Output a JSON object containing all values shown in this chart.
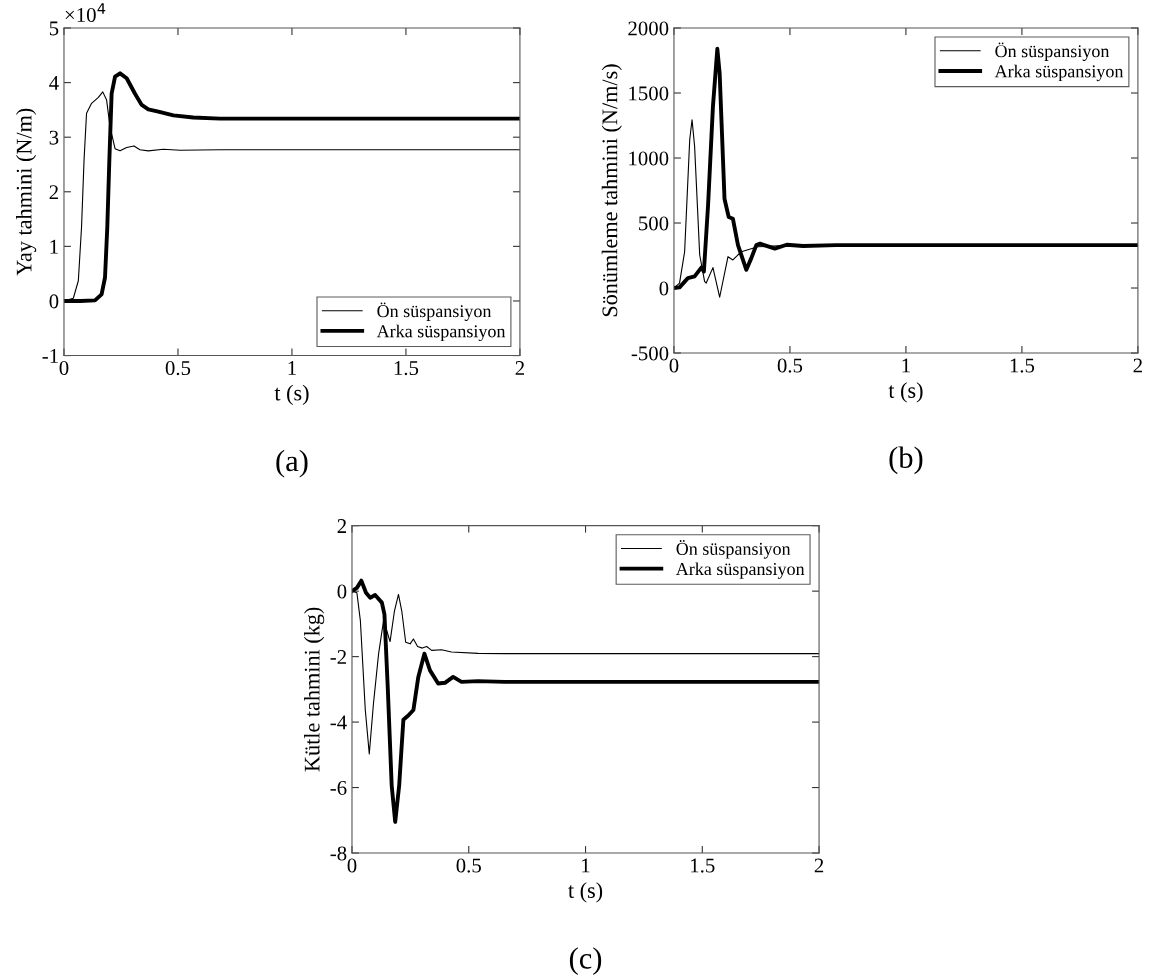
{
  "chart_data": [
    {
      "type": "line",
      "xlabel": "t (s)",
      "ylabel": "Yay tahmini (N/m)",
      "xlim": [
        0,
        2
      ],
      "xticks": [
        0,
        0.5,
        1,
        1.5,
        2
      ],
      "ylim": [
        -1,
        5
      ],
      "yticks": [
        -1,
        0,
        1,
        2,
        3,
        4,
        5
      ],
      "annotations": [
        "×10$^{4}$",
        "(a)"
      ],
      "legend": "bottom right",
      "grid": false,
      "marker": "none",
      "line_style": "solid",
      "series": [
        {
          "name": "Ön süspansiyon",
          "color": "#000000",
          "x": [
            0,
            0.041,
            0.063,
            0.077,
            0.088,
            0.099,
            0.121,
            0.151,
            0.17,
            0.187,
            0.202,
            0.224,
            0.246,
            0.275,
            0.307,
            0.333,
            0.37,
            0.436,
            0.509,
            0.684,
            1,
            2
          ],
          "values": [
            0,
            0.05,
            0.37,
            1.35,
            2.58,
            3.44,
            3.62,
            3.73,
            3.83,
            3.68,
            3.19,
            2.79,
            2.75,
            2.81,
            2.84,
            2.77,
            2.75,
            2.78,
            2.76,
            2.77,
            2.77,
            2.77
          ]
        },
        {
          "name": "Arka süspansiyon",
          "color": "#000000",
          "x": [
            0,
            0.07,
            0.136,
            0.165,
            0.18,
            0.19,
            0.199,
            0.209,
            0.224,
            0.246,
            0.275,
            0.311,
            0.341,
            0.37,
            0.414,
            0.48,
            0.567,
            0.684,
            1,
            2
          ],
          "values": [
            0,
            0,
            0.01,
            0.12,
            0.43,
            1.35,
            2.58,
            3.8,
            4.11,
            4.17,
            4.08,
            3.8,
            3.59,
            3.51,
            3.47,
            3.4,
            3.36,
            3.34,
            3.34,
            3.34
          ]
        }
      ]
    },
    {
      "type": "line",
      "xlabel": "t (s)",
      "ylabel": "Sönümleme tahmini (N/m/s)",
      "xlim": [
        0,
        2
      ],
      "xticks": [
        0,
        0.5,
        1,
        1.5,
        2
      ],
      "ylim": [
        -500,
        2000
      ],
      "yticks": [
        -500,
        0,
        500,
        1000,
        1500,
        2000
      ],
      "annotations": [
        "(b)"
      ],
      "legend": "top right",
      "grid": false,
      "marker": "none",
      "line_style": "solid",
      "series": [
        {
          "name": "Ön süspansiyon",
          "color": "#000000",
          "x": [
            0,
            0.024,
            0.046,
            0.068,
            0.078,
            0.089,
            0.111,
            0.132,
            0.139,
            0.168,
            0.197,
            0.233,
            0.254,
            0.29,
            0.362,
            0.45,
            0.6,
            1,
            2
          ],
          "values": [
            0,
            38,
            279,
            1142,
            1294,
            1091,
            254,
            51,
            38,
            157,
            -71,
            241,
            216,
            279,
            317,
            325,
            330,
            330,
            330
          ]
        },
        {
          "name": "Arka süspansiyon",
          "color": "#000000",
          "x": [
            0,
            0.024,
            0.06,
            0.089,
            0.118,
            0.129,
            0.147,
            0.168,
            0.187,
            0.197,
            0.218,
            0.236,
            0.254,
            0.276,
            0.312,
            0.333,
            0.355,
            0.371,
            0.435,
            0.486,
            0.557,
            0.7,
            1,
            2
          ],
          "values": [
            0,
            5,
            76,
            89,
            157,
            127,
            635,
            1396,
            1840,
            1650,
            685,
            546,
            533,
            330,
            140,
            228,
            330,
            341,
            303,
            333,
            323,
            330,
            330,
            330
          ]
        }
      ]
    },
    {
      "type": "line",
      "xlabel": "t (s)",
      "ylabel": "Kütle tahmini (kg)",
      "xlim": [
        0,
        2
      ],
      "xticks": [
        0,
        0.5,
        1,
        1.5,
        2
      ],
      "ylim": [
        -8,
        2
      ],
      "yticks": [
        -8,
        -6,
        -4,
        -2,
        0,
        2
      ],
      "annotations": [
        "(c)"
      ],
      "legend": "top right",
      "grid": false,
      "marker": "none",
      "line_style": "solid",
      "series": [
        {
          "name": "Ön süspansiyon",
          "color": "#000000",
          "x": [
            0,
            0.021,
            0.036,
            0.057,
            0.074,
            0.092,
            0.114,
            0.135,
            0.149,
            0.163,
            0.182,
            0.199,
            0.213,
            0.23,
            0.249,
            0.263,
            0.281,
            0.301,
            0.32,
            0.341,
            0.384,
            0.426,
            0.54,
            0.653,
            1,
            2
          ],
          "values": [
            0,
            -0.05,
            -0.91,
            -3.63,
            -4.97,
            -3.43,
            -1.91,
            -0.91,
            -1.21,
            -1.54,
            -0.6,
            -0.1,
            -0.6,
            -1.56,
            -1.61,
            -1.46,
            -1.69,
            -1.74,
            -1.69,
            -1.81,
            -1.79,
            -1.86,
            -1.9,
            -1.91,
            -1.91,
            -1.91
          ]
        },
        {
          "name": "Arka süspansiyon",
          "color": "#000000",
          "x": [
            0,
            0.021,
            0.04,
            0.06,
            0.078,
            0.099,
            0.128,
            0.139,
            0.153,
            0.17,
            0.185,
            0.202,
            0.22,
            0.241,
            0.263,
            0.284,
            0.31,
            0.334,
            0.369,
            0.398,
            0.433,
            0.469,
            0.54,
            0.653,
            1,
            2
          ],
          "values": [
            0,
            0.1,
            0.32,
            -0.05,
            -0.2,
            -0.12,
            -0.35,
            -0.71,
            -2.92,
            -5.94,
            -7.05,
            -5.94,
            -3.93,
            -3.8,
            -3.63,
            -2.62,
            -1.91,
            -2.42,
            -2.82,
            -2.8,
            -2.62,
            -2.77,
            -2.75,
            -2.77,
            -2.77,
            -2.77
          ]
        }
      ]
    }
  ]
}
